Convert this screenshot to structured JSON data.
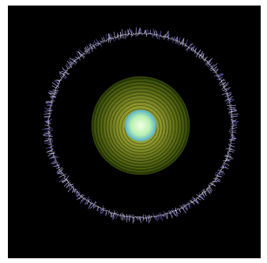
{
  "scene": {
    "background_color": "#000000",
    "page_color": "#ffffff",
    "outer_ring_color": "#c9c3ff",
    "outer_ring_dark_color": "#7a70d8",
    "disc_color_light": "#cfcf4a",
    "disc_color_dark": "#283c00",
    "core_color_light": "#f4ffe6",
    "core_color_dark": "#55b0c8",
    "disc_ring_count": 30,
    "outer_ring_filament_count": 360
  }
}
